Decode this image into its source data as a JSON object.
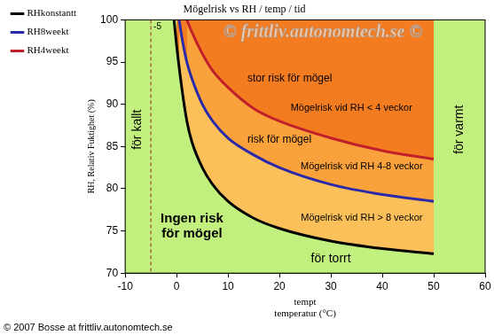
{
  "chart_data": {
    "type": "line",
    "title": "Mögelrisk vs RH / temp / tid",
    "xlabel": "tempt\ntemperatur (°C)",
    "ylabel": "RH, Relativ Fuktighet (%)",
    "xlim": [
      -10,
      60
    ],
    "xticks": [
      -10,
      0,
      10,
      20,
      30,
      40,
      50,
      60
    ],
    "ylim": [
      70,
      100
    ],
    "yticks": [
      70,
      75,
      80,
      85,
      90,
      95,
      100
    ],
    "grid": false,
    "legend": "left",
    "marker": "none",
    "line_style": "solid",
    "series": [
      {
        "name": "RH4weekt",
        "color": "#c0202a",
        "x": [
          2,
          3,
          5,
          7,
          10,
          15,
          20,
          30,
          40,
          50
        ],
        "values": [
          100,
          98.5,
          96,
          94,
          92,
          89.5,
          88,
          86,
          84.5,
          83.5
        ]
      },
      {
        "name": "RH8weekt",
        "color": "#2a2aa8",
        "x": [
          0.5,
          1,
          2,
          3,
          5,
          7,
          10,
          15,
          20,
          30,
          40,
          50
        ],
        "values": [
          100,
          98,
          95,
          93,
          90,
          88,
          86,
          84,
          82.5,
          80.5,
          79.3,
          78.5
        ]
      },
      {
        "name": "RHkonstantt",
        "color": "#000000",
        "x": [
          -0.5,
          0,
          1,
          2,
          3,
          5,
          7,
          10,
          15,
          20,
          30,
          40,
          50
        ],
        "values": [
          100,
          97,
          92,
          88,
          85.5,
          82.5,
          80.5,
          78.5,
          76.5,
          75.3,
          73.8,
          72.9,
          72.3
        ]
      }
    ],
    "mould_zone_xlim": [
      0,
      50
    ],
    "reference_lines": [
      {
        "x": -5,
        "label": "-5"
      }
    ],
    "annotations": [
      {
        "text": "stor risk för mögel",
        "x": 22,
        "y": 93
      },
      {
        "text": "Mögelrisk vid RH < 4 veckor",
        "x": 34,
        "y": 89.5
      },
      {
        "text": "risk för mögel",
        "x": 20,
        "y": 85.8
      },
      {
        "text": "Mögelrisk vid RH 4-8 veckor",
        "x": 36,
        "y": 82.6
      },
      {
        "text": "Mögelrisk vid RH > 8 veckor",
        "x": 36,
        "y": 76.5
      },
      {
        "text": "för torrt",
        "x": 30,
        "y": 71.7
      },
      {
        "text": "Ingen risk\nför mögel",
        "x": 3,
        "y": 75.5
      }
    ],
    "vertical_annotations": [
      {
        "text": "för kallt",
        "x": -7.5,
        "y": 87
      },
      {
        "text": "för varmt",
        "x": 55,
        "y": 87
      }
    ],
    "watermark": "© frittliv.autonomtech.se ©",
    "copyright": "© 2007 Bosse at frittliv.autonomtech.se"
  }
}
